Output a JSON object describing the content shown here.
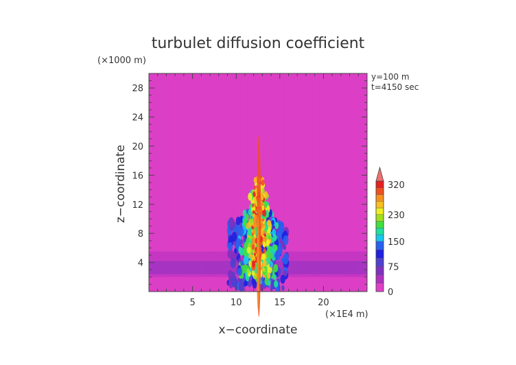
{
  "chart_data": {
    "type": "heatmap",
    "title": "turbulet diffusion coefficient",
    "xlabel": "x−coordinate",
    "ylabel": "z−coordinate",
    "x_unit": "(×1E4 m)",
    "y_unit": "(×1000 m)",
    "annotations": [
      "y=100 m",
      "t=4150 sec"
    ],
    "x_ticks": [
      5,
      10,
      15,
      20
    ],
    "x_tick_labels": [
      "5",
      "10",
      "15",
      "20"
    ],
    "y_ticks": [
      4,
      8,
      12,
      16,
      20,
      24,
      28
    ],
    "y_tick_labels": [
      "4",
      "8",
      "12",
      "16",
      "20",
      "24",
      "28"
    ],
    "xlim": [
      0,
      25
    ],
    "ylim": [
      0,
      30
    ],
    "colorbar": {
      "tick_values": [
        0,
        75,
        150,
        230,
        320
      ],
      "tick_labels": [
        "0",
        "75",
        "150",
        "230",
        "320"
      ],
      "levels": [
        0,
        25,
        50,
        75,
        100,
        125,
        150,
        170,
        190,
        210,
        230,
        250,
        270,
        290,
        310,
        330
      ],
      "colors": [
        "#e040c8",
        "#b030c0",
        "#8030c0",
        "#5040d0",
        "#2020e0",
        "#2860f0",
        "#18c8f0",
        "#20e0a0",
        "#40e040",
        "#a0e020",
        "#f0f020",
        "#f8c020",
        "#f89020",
        "#f05020",
        "#e82020",
        "#f07070"
      ],
      "extend_max": true
    },
    "background_value": 0,
    "field_description_points": []
  }
}
